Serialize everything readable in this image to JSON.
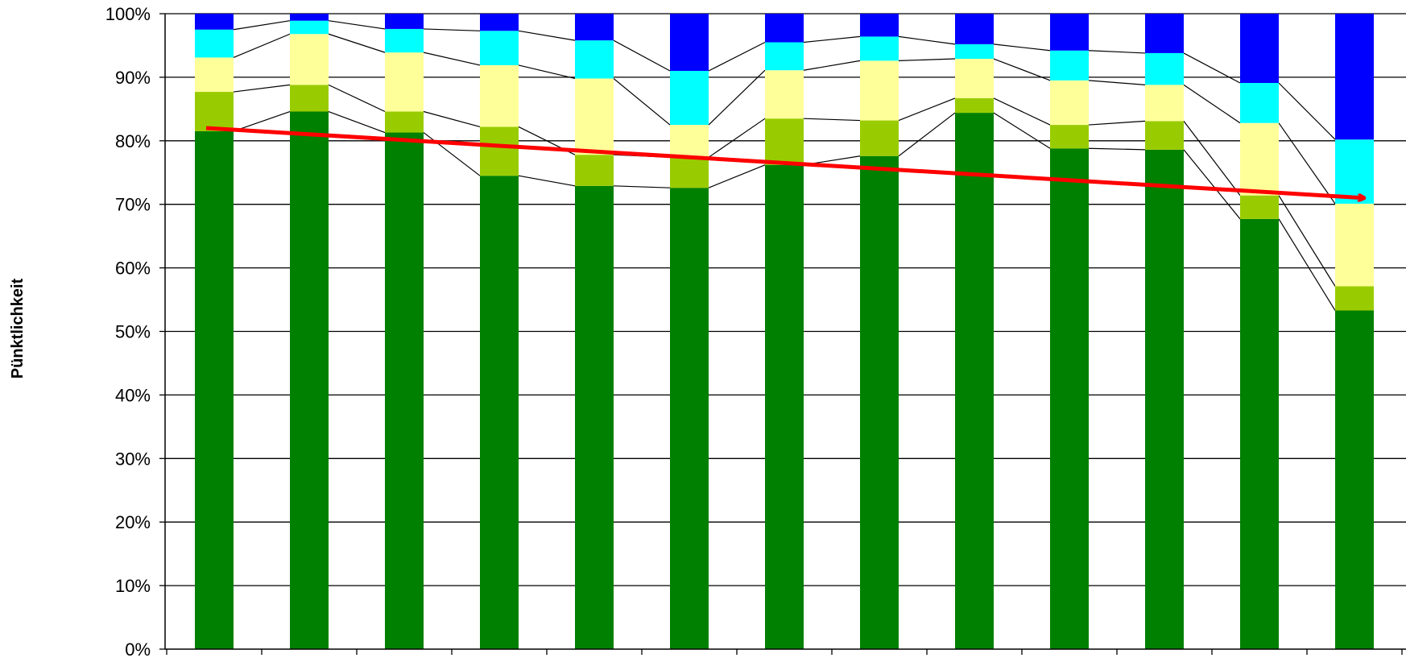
{
  "chart_data": {
    "type": "bar",
    "stacked": true,
    "title": "",
    "xlabel": "",
    "ylabel": "Pünktlichkeit",
    "ylim": [
      0,
      100
    ],
    "yticks": [
      "0%",
      "10%",
      "20%",
      "30%",
      "40%",
      "50%",
      "60%",
      "70%",
      "80%",
      "90%",
      "100%"
    ],
    "grid": true,
    "legend": "none",
    "categories": [
      "",
      "",
      "",
      "",
      "",
      "",
      "",
      "",
      "",
      "",
      "",
      "",
      ""
    ],
    "connector_lines": true,
    "series": [
      {
        "color": "#008000",
        "values": [
          81.5,
          84.6,
          81.3,
          74.5,
          72.9,
          72.6,
          76.2,
          77.6,
          84.4,
          78.8,
          78.6,
          67.7,
          53.3
        ]
      },
      {
        "color": "#99cc00",
        "values": [
          6.2,
          4.2,
          3.3,
          7.7,
          4.9,
          4.8,
          7.3,
          5.6,
          2.3,
          3.7,
          4.5,
          3.7,
          3.8
        ]
      },
      {
        "color": "#ffff99",
        "values": [
          5.4,
          8.0,
          9.3,
          9.7,
          12.0,
          5.1,
          7.6,
          9.4,
          6.2,
          7.0,
          5.7,
          11.4,
          13.0
        ]
      },
      {
        "color": "#00ffff",
        "values": [
          4.4,
          2.1,
          3.7,
          5.4,
          6.0,
          8.5,
          4.4,
          3.8,
          2.3,
          4.7,
          5.0,
          6.3,
          10.1
        ]
      },
      {
        "color": "#0000ff",
        "values": [
          2.5,
          1.1,
          2.4,
          2.7,
          4.2,
          9.0,
          4.5,
          3.6,
          4.8,
          5.8,
          6.2,
          10.9,
          19.8
        ]
      }
    ],
    "trend": {
      "color": "#ff0000",
      "from": {
        "bar": 1,
        "y": 82
      },
      "to": {
        "bar": 13,
        "y": 71
      }
    }
  }
}
